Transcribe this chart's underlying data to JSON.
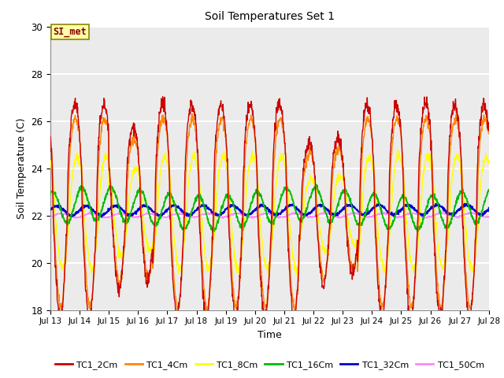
{
  "title": "Soil Temperatures Set 1",
  "xlabel": "Time",
  "ylabel": "Soil Temperature (C)",
  "xlim_days": [
    13,
    28
  ],
  "ylim": [
    18,
    30
  ],
  "yticks": [
    18,
    20,
    22,
    24,
    26,
    28,
    30
  ],
  "xtick_labels": [
    "Jul 13",
    "Jul 14",
    "Jul 15",
    "Jul 16",
    "Jul 17",
    "Jul 18",
    "Jul 19",
    "Jul 20",
    "Jul 21",
    "Jul 22",
    "Jul 23",
    "Jul 24",
    "Jul 25",
    "Jul 26",
    "Jul 27",
    "Jul 28"
  ],
  "legend_labels": [
    "TC1_2Cm",
    "TC1_4Cm",
    "TC1_8Cm",
    "TC1_16Cm",
    "TC1_32Cm",
    "TC1_50Cm"
  ],
  "line_colors": [
    "#cc0000",
    "#ff8800",
    "#ffff00",
    "#00bb00",
    "#0000cc",
    "#ff88ff"
  ],
  "annotation_text": "SI_met",
  "annotation_color": "#880000",
  "annotation_bg": "#ffffaa",
  "annotation_border": "#888800",
  "bg_color": "#ebebeb",
  "grid_color": "#ffffff",
  "n_points": 1500
}
